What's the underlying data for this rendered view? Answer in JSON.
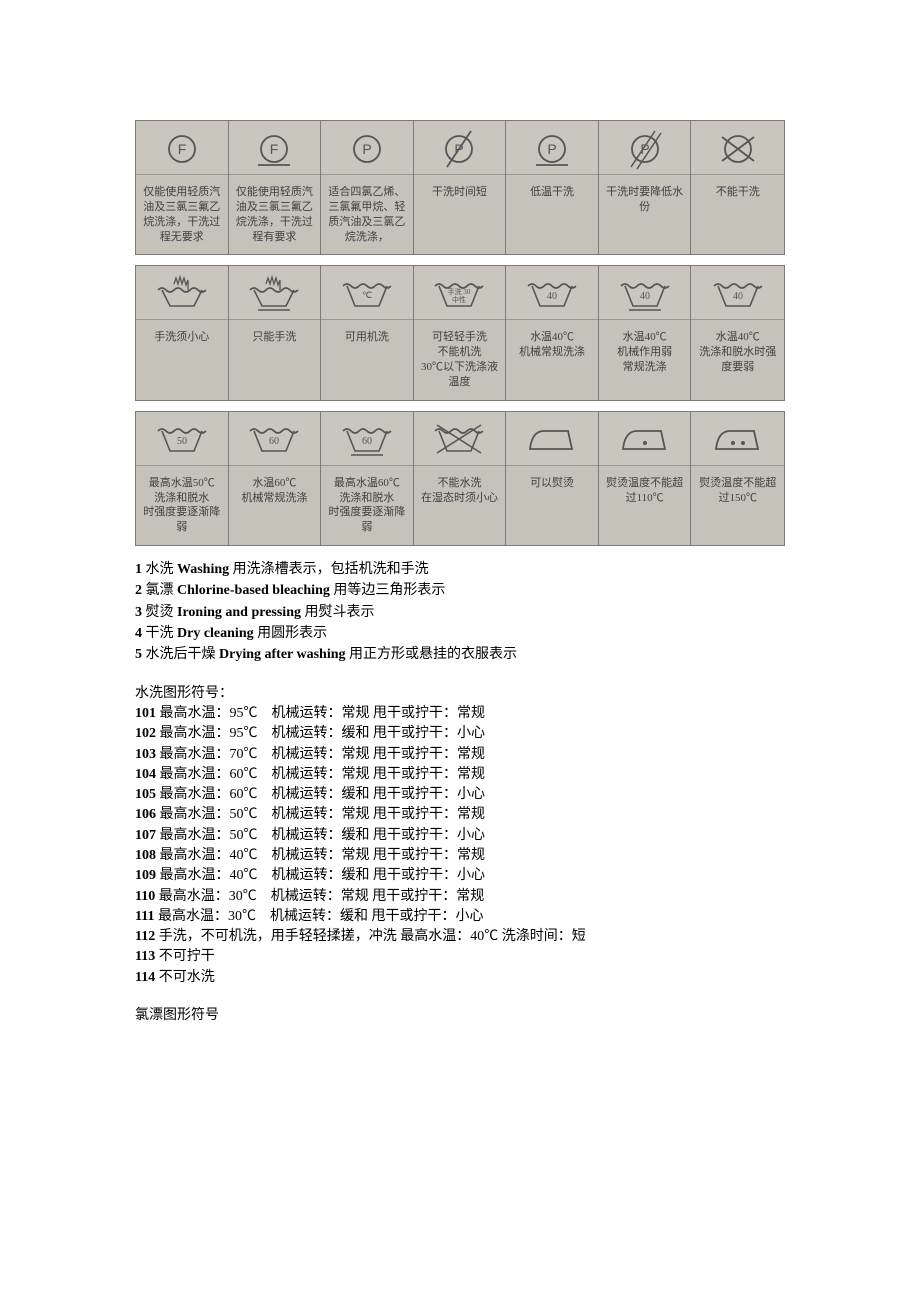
{
  "colors": {
    "page_bg": "#ffffff",
    "table_bg": "#c4c2b9",
    "icon_bg": "#c8c6bd",
    "border": "#7a7a7a",
    "cell_border": "#9a9890",
    "label_text": "#404040",
    "body_text": "#000000",
    "stroke": "#555555"
  },
  "tables": [
    {
      "cells": [
        {
          "type": "circleLetter",
          "letter": "F",
          "label": "仅能使用轻质汽\n油及三氯三氟乙\n烷洗涤，干洗过\n程无要求"
        },
        {
          "type": "circleLetterUnderline",
          "letter": "F",
          "label": "仅能使用轻质汽\n油及三氯三氟乙\n烷洗涤，干洗过\n程有要求"
        },
        {
          "type": "circleLetter",
          "letter": "P",
          "label": "适合四氯乙烯、\n三氯氟甲烷、轻\n质汽油及三氯乙\n烷洗涤，"
        },
        {
          "type": "circleLetterSlash",
          "letter": "P",
          "label": "干洗时间短"
        },
        {
          "type": "circleLetterUnderline",
          "letter": "P",
          "label": "低温干洗"
        },
        {
          "type": "circleLetterDoubleSlash",
          "letter": "P",
          "label": "干洗时要降低水\n份"
        },
        {
          "type": "circleCross",
          "label": "不能干洗"
        }
      ]
    },
    {
      "cells": [
        {
          "type": "handwash",
          "label": "手洗须小心"
        },
        {
          "type": "handwashUnderline",
          "label": "只能手洗"
        },
        {
          "type": "tubTemp",
          "temp": "℃",
          "label": "可用机洗"
        },
        {
          "type": "tubText",
          "text": "手洗 30\n中性",
          "label": "可轻轻手洗\n不能机洗\n30℃以下洗涤液\n温度"
        },
        {
          "type": "tub40",
          "text": "40",
          "label": "水温40℃\n机械常规洗涤"
        },
        {
          "type": "tub40Under",
          "text": "40",
          "label": "水温40℃\n机械作用弱\n常规洗涤"
        },
        {
          "type": "tub40Special",
          "text": "40",
          "label": "水温40℃\n洗涤和脱水时强\n度要弱"
        }
      ]
    },
    {
      "cells": [
        {
          "type": "tubNum",
          "text": "50",
          "label": "最高水温50℃\n洗涤和脱水\n时强度要逐渐降\n弱"
        },
        {
          "type": "tubNum",
          "text": "60",
          "label": "水温60℃\n机械常规洗涤"
        },
        {
          "type": "tubNumUnder",
          "text": "60",
          "label": "最高水温60℃\n洗涤和脱水\n时强度要逐渐降\n弱"
        },
        {
          "type": "tubCross",
          "label": "不能水洗\n在湿态时须小心"
        },
        {
          "type": "iron",
          "label": "可以熨烫"
        },
        {
          "type": "ironDot1",
          "label": "熨烫温度不能超\n过110℃"
        },
        {
          "type": "ironDot2",
          "label": "熨烫温度不能超\n过150℃"
        }
      ]
    }
  ],
  "defs": [
    {
      "n": "1",
      "cn": "水洗",
      "en": "Washing",
      "desc": "用洗涤槽表示，包括机洗和手洗"
    },
    {
      "n": "2",
      "cn": "氯漂",
      "en": "Chlorine-based bleaching",
      "desc": "用等边三角形表示"
    },
    {
      "n": "3",
      "cn": "熨烫",
      "en": "Ironing and pressing",
      "desc": "用熨斗表示"
    },
    {
      "n": "4",
      "cn": "干洗",
      "en": "Dry cleaning",
      "desc": "用圆形表示"
    },
    {
      "n": "5",
      "cn": "水洗后干燥",
      "en": "Drying after washing",
      "desc": "用正方形或悬挂的衣服表示"
    }
  ],
  "section1_title": "水洗图形符号：",
  "wash_codes": [
    {
      "n": "101",
      "t": "最高水温：95℃　机械运转：常规 甩干或拧干：常规"
    },
    {
      "n": "102",
      "t": "最高水温：95℃　机械运转：缓和 甩干或拧干：小心"
    },
    {
      "n": "103",
      "t": "最高水温：70℃　机械运转：常规 甩干或拧干：常规"
    },
    {
      "n": "104",
      "t": "最高水温：60℃　机械运转：常规 甩干或拧干：常规"
    },
    {
      "n": "105",
      "t": "最高水温：60℃　机械运转：缓和 甩干或拧干：小心"
    },
    {
      "n": "106",
      "t": "最高水温：50℃　机械运转：常规 甩干或拧干：常规"
    },
    {
      "n": "107",
      "t": "最高水温：50℃　机械运转：缓和 甩干或拧干：小心"
    },
    {
      "n": "108",
      "t": "最高水温：40℃　机械运转：常规 甩干或拧干：常规"
    },
    {
      "n": "109",
      "t": "最高水温：40℃　机械运转：缓和 甩干或拧干：小心"
    },
    {
      "n": "110",
      "t": "最高水温：30℃　机械运转：常规 甩干或拧干：常规"
    },
    {
      "n": "111",
      "t": "最高水温：30℃　机械运转：缓和 甩干或拧干：小心"
    },
    {
      "n": "112",
      "t": "手洗，不可机洗，用手轻轻揉搓，冲洗 最高水温：40℃ 洗涤时间：短"
    },
    {
      "n": "113",
      "t": "不可拧干"
    },
    {
      "n": "114",
      "t": "不可水洗"
    }
  ],
  "section2_title": "氯漂图形符号"
}
